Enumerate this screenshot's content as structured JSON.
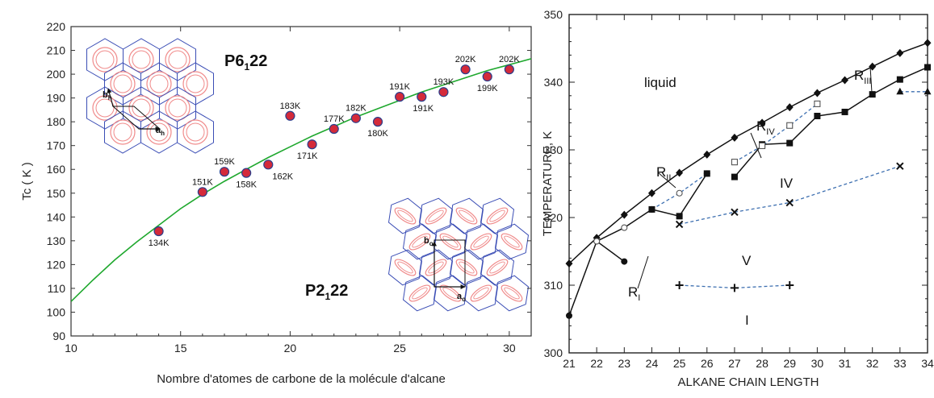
{
  "chart_data": [
    {
      "type": "scatter",
      "title": "",
      "xlabel": "Nombre d'atomes de carbone de la molécule d'alcane",
      "ylabel": "Tc ( K )",
      "xlim": [
        10,
        31
      ],
      "ylim": [
        90,
        220
      ],
      "xticks": [
        "10",
        "15",
        "20",
        "25",
        "30"
      ],
      "yticks": [
        "90",
        "100",
        "110",
        "120",
        "130",
        "140",
        "150",
        "160",
        "170",
        "180",
        "190",
        "200",
        "210",
        "220"
      ],
      "grid": false,
      "points": [
        {
          "x": 14,
          "y": 134,
          "label": "134K"
        },
        {
          "x": 16,
          "y": 150.5,
          "label": "151K"
        },
        {
          "x": 17,
          "y": 159,
          "label": "159K"
        },
        {
          "x": 18,
          "y": 158.5,
          "label": "158K"
        },
        {
          "x": 19,
          "y": 162,
          "label": "162K"
        },
        {
          "x": 20,
          "y": 182.5,
          "label": "183K"
        },
        {
          "x": 21,
          "y": 170.5,
          "label": "171K"
        },
        {
          "x": 22,
          "y": 177,
          "label": "177K"
        },
        {
          "x": 23,
          "y": 181.5,
          "label": "182K"
        },
        {
          "x": 24,
          "y": 180,
          "label": "180K"
        },
        {
          "x": 25,
          "y": 190.5,
          "label": "191K"
        },
        {
          "x": 26,
          "y": 190.5,
          "label": "191K"
        },
        {
          "x": 27,
          "y": 192.5,
          "label": "193K"
        },
        {
          "x": 28,
          "y": 202,
          "label": "202K"
        },
        {
          "x": 29,
          "y": 199,
          "label": "199K"
        },
        {
          "x": 30,
          "y": 202,
          "label": "202K"
        }
      ],
      "fit_curve": {
        "x": [
          10,
          11,
          12,
          13,
          14,
          15,
          16,
          17,
          18,
          19,
          20,
          21,
          22,
          23,
          24,
          25,
          26,
          27,
          28,
          29,
          30,
          31
        ],
        "y": [
          104.5,
          113.5,
          122,
          129.5,
          136.5,
          143.5,
          149.5,
          155,
          160,
          165,
          169.5,
          174,
          178,
          182,
          185.5,
          189,
          192.5,
          195.5,
          198.5,
          201.5,
          204,
          206.5
        ]
      },
      "phase_labels": {
        "upper": {
          "main": "P6",
          "sub": "1",
          "rest": "22"
        },
        "lower": {
          "main": "P2",
          "sub": "1",
          "rest": "22"
        }
      },
      "lattice_labels": {
        "upper": [
          "b",
          "h",
          "a",
          "h"
        ],
        "lower": [
          "b",
          "o",
          "a",
          "o"
        ]
      },
      "colors": {
        "points": "#d42a3a",
        "point_edge": "#2a3e8c",
        "curve": "#1fa82e",
        "hex": "#3a4db5",
        "ring": "#f08a8a"
      }
    },
    {
      "type": "line",
      "title": "",
      "xlabel": "ALKANE CHAIN LENGTH",
      "ylabel": "TEMPERATURE, K",
      "xlim": [
        21,
        34
      ],
      "ylim": [
        300,
        350
      ],
      "xticks": [
        "21",
        "22",
        "23",
        "24",
        "25",
        "26",
        "27",
        "28",
        "29",
        "30",
        "31",
        "32",
        "33",
        "34"
      ],
      "yticks": [
        "300",
        "310",
        "320",
        "330",
        "340",
        "350"
      ],
      "grid": false,
      "series": [
        {
          "marker": "diamond",
          "style": "solid",
          "x": [
            21,
            22,
            23,
            24,
            25,
            26,
            27,
            28,
            29,
            30,
            31,
            32,
            33,
            34
          ],
          "y": [
            313.2,
            317,
            320.4,
            323.6,
            326.6,
            329.3,
            331.8,
            334,
            336.3,
            338.4,
            340.3,
            342.3,
            344.3,
            345.8
          ]
        },
        {
          "marker": "filled-circle",
          "style": "solid",
          "x": [
            21,
            22,
            23
          ],
          "y": [
            305.5,
            316.5,
            313.5
          ]
        },
        {
          "marker": "open-circle",
          "style": "solid",
          "x": [
            22,
            23,
            24
          ],
          "y": [
            316.5,
            318.5,
            321.2
          ]
        },
        {
          "marker": "open-circle",
          "style": "dashed",
          "x": [
            24,
            25,
            26
          ],
          "y": [
            321.2,
            323.6,
            326.5
          ]
        },
        {
          "marker": "filled-square",
          "style": "solid",
          "x": [
            24,
            25,
            26
          ],
          "y": [
            321.2,
            320.2,
            326.5
          ]
        },
        {
          "marker": "filled-square",
          "style": "solid",
          "x": [
            27,
            28,
            29,
            30,
            31,
            32,
            33,
            34
          ],
          "y": [
            326,
            330.8,
            331,
            335,
            335.6,
            338.2,
            340.4,
            342.2
          ]
        },
        {
          "marker": "open-square",
          "style": "dashed",
          "x": [
            27,
            28,
            29,
            30
          ],
          "y": [
            328.2,
            330.6,
            333.6,
            336.8
          ]
        },
        {
          "marker": "cross",
          "style": "dashed",
          "x": [
            25,
            27,
            29,
            33
          ],
          "y": [
            319,
            320.8,
            322.2,
            327.6
          ]
        },
        {
          "marker": "plus",
          "style": "dashed",
          "x": [
            25,
            27,
            29
          ],
          "y": [
            310,
            309.6,
            310
          ]
        },
        {
          "marker": "triangle",
          "style": "dashed",
          "x": [
            33,
            34
          ],
          "y": [
            338.6,
            338.6
          ]
        }
      ],
      "region_labels": {
        "liquid": "liquid",
        "rIII": {
          "main": "R",
          "sub": "III"
        },
        "rIV": {
          "main": "R",
          "sub": "IV"
        },
        "rII": {
          "main": "R",
          "sub": "II"
        },
        "rI": {
          "main": "R",
          "sub": "I"
        },
        "iv": "IV",
        "v": "V",
        "i": "I"
      }
    }
  ]
}
